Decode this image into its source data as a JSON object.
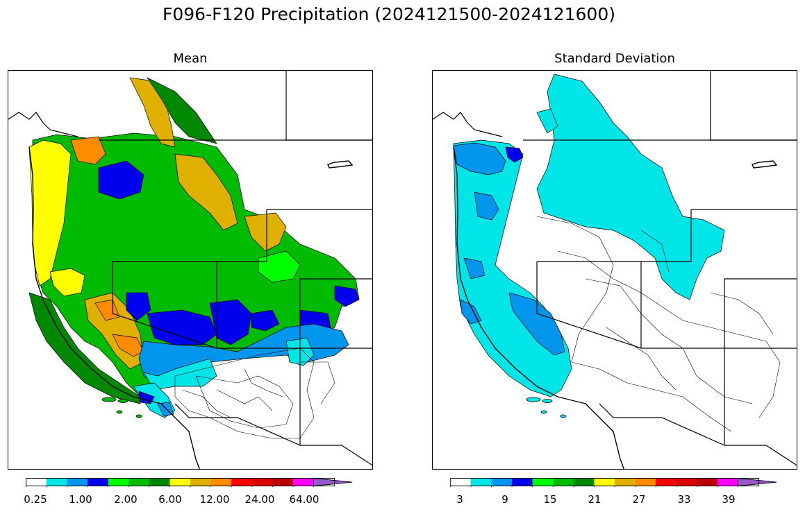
{
  "title": "F096-F120 Precipitation (2024121500-2024121600)",
  "panels": [
    {
      "id": "mean",
      "title": "Mean",
      "colorbar": {
        "colors": [
          "#ffffff",
          "#00e5e8",
          "#0096ee",
          "#0000ee",
          "#00ff00",
          "#00bb00",
          "#008800",
          "#ffff00",
          "#e0b000",
          "#ff8c00",
          "#ff0000",
          "#dd0000",
          "#bb0000",
          "#ff00ff",
          "#9955cc"
        ],
        "tick_labels": [
          "0.25",
          "1.00",
          "2.00",
          "6.00",
          "12.00",
          "24.00",
          "64.00"
        ],
        "extend": "max"
      }
    },
    {
      "id": "stddev",
      "title": "Standard Deviation",
      "colorbar": {
        "colors": [
          "#ffffff",
          "#00e5e8",
          "#0096ee",
          "#0000ee",
          "#00ff00",
          "#00bb00",
          "#008800",
          "#ffff00",
          "#e0b000",
          "#ff8c00",
          "#ff0000",
          "#dd0000",
          "#bb0000",
          "#ff00ff",
          "#9955cc"
        ],
        "tick_labels": [
          "3",
          "9",
          "15",
          "21",
          "27",
          "33",
          "39"
        ],
        "extend": "max"
      }
    }
  ]
}
